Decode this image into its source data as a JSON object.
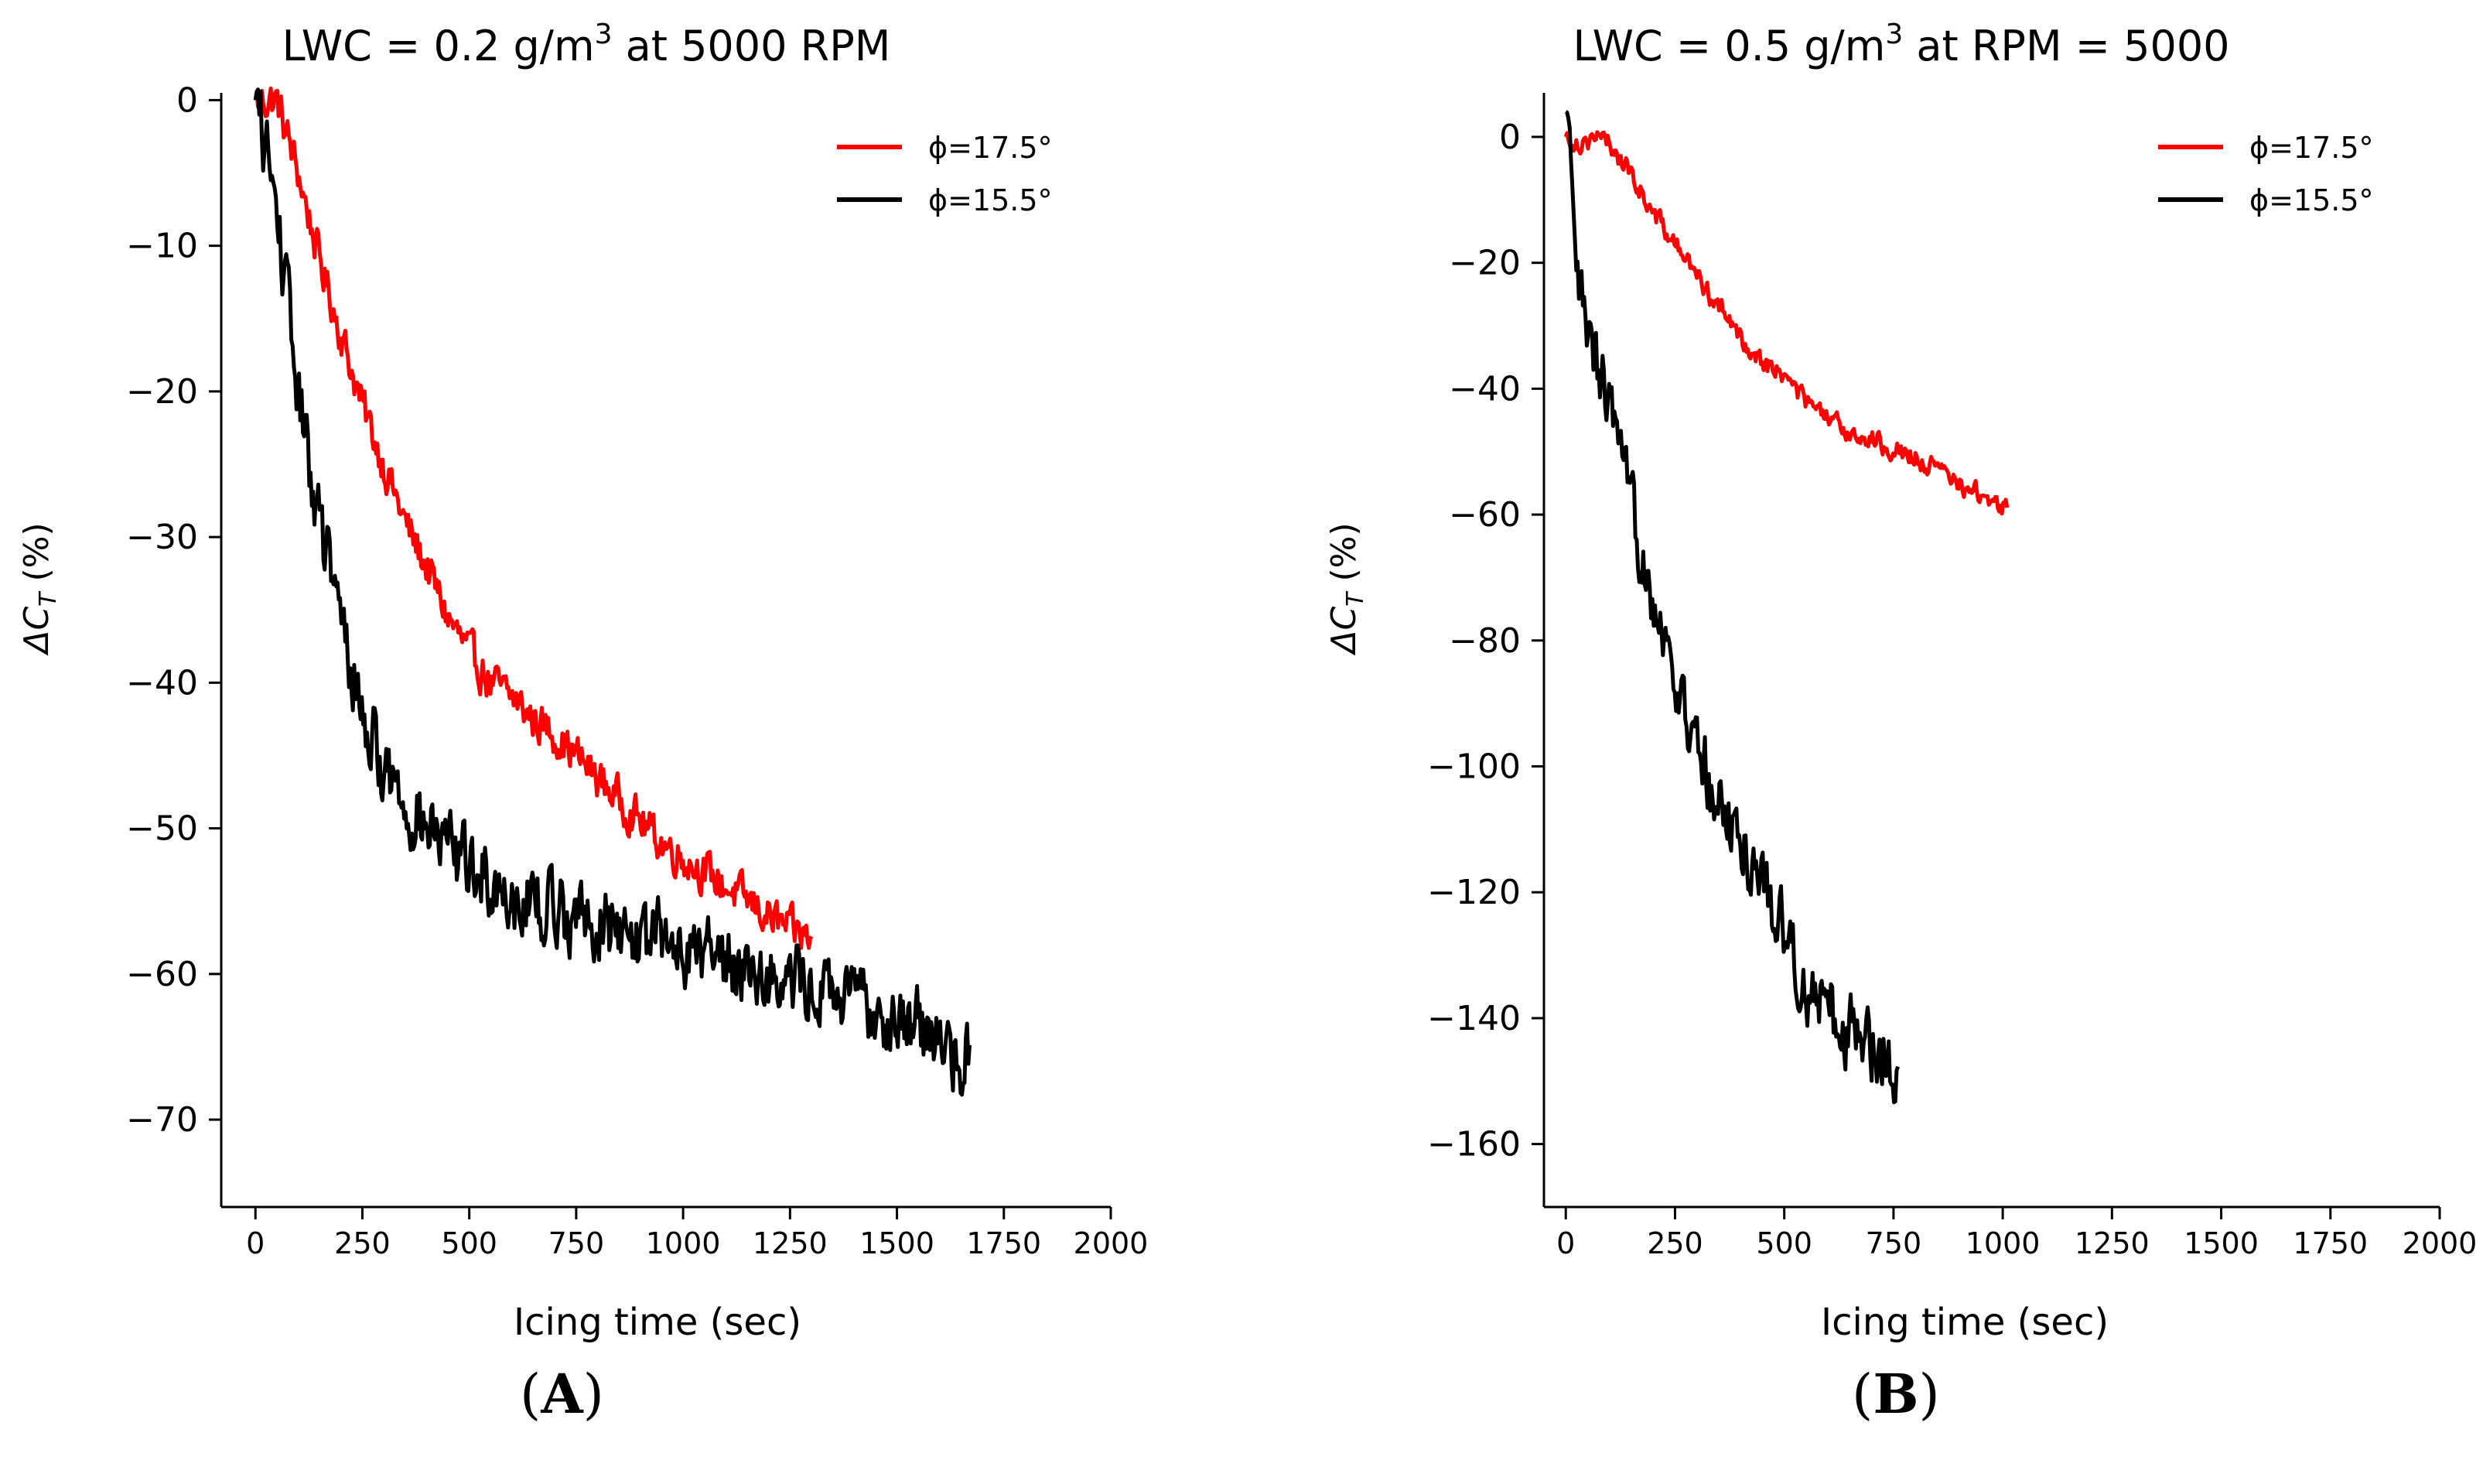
{
  "chart_data": [
    {
      "type": "line",
      "panel": "(A)",
      "panel_letter": "A",
      "title": "LWC = 0.2 g/m³ at 5000 RPM",
      "title_parts": {
        "pre": "LWC = 0.2 g/m",
        "sup": "3",
        "post": " at 5000 RPM"
      },
      "xlabel": "Icing time (sec)",
      "ylabel": "ΔC_T (%)",
      "ylabel_parts": {
        "pre": "ΔC",
        "sub": "T",
        "post": " (%)"
      },
      "xlim": [
        -80,
        2000
      ],
      "ylim": [
        -76,
        0.5
      ],
      "xticks": [
        0,
        250,
        500,
        750,
        1000,
        1250,
        1500,
        1750,
        2000
      ],
      "yticks": [
        0,
        -10,
        -20,
        -30,
        -40,
        -50,
        -60,
        -70
      ],
      "ytick_labels": [
        "0",
        "−10",
        "−20",
        "−30",
        "−40",
        "−50",
        "−60",
        "−70"
      ],
      "legend_position": "top-right",
      "series": [
        {
          "name": "ϕ=17.5°",
          "color": "#ff0000",
          "x_end": 1300,
          "points": [
            [
              0,
              0
            ],
            [
              50,
              0
            ],
            [
              100,
              -5
            ],
            [
              150,
              -11
            ],
            [
              200,
              -16
            ],
            [
              250,
              -21
            ],
            [
              300,
              -25
            ],
            [
              350,
              -29
            ],
            [
              400,
              -32
            ],
            [
              450,
              -35.5
            ],
            [
              500,
              -38
            ],
            [
              550,
              -40
            ],
            [
              600,
              -41
            ],
            [
              650,
              -42.5
            ],
            [
              700,
              -43.5
            ],
            [
              750,
              -45
            ],
            [
              800,
              -46.5
            ],
            [
              850,
              -48
            ],
            [
              900,
              -49.5
            ],
            [
              950,
              -51
            ],
            [
              1000,
              -52
            ],
            [
              1050,
              -53
            ],
            [
              1100,
              -54
            ],
            [
              1150,
              -55
            ],
            [
              1200,
              -56
            ],
            [
              1250,
              -57
            ],
            [
              1300,
              -57.5
            ]
          ],
          "noise": 1.2
        },
        {
          "name": "ϕ=15.5°",
          "color": "#000000",
          "x_end": 1670,
          "points": [
            [
              0,
              0
            ],
            [
              30,
              -4
            ],
            [
              60,
              -10
            ],
            [
              90,
              -18
            ],
            [
              120,
              -24
            ],
            [
              150,
              -29
            ],
            [
              200,
              -36
            ],
            [
              250,
              -42
            ],
            [
              300,
              -46
            ],
            [
              350,
              -48
            ],
            [
              400,
              -50
            ],
            [
              450,
              -51.5
            ],
            [
              500,
              -52.5
            ],
            [
              550,
              -53.5
            ],
            [
              600,
              -54.5
            ],
            [
              650,
              -55
            ],
            [
              700,
              -55.5
            ],
            [
              800,
              -56.5
            ],
            [
              900,
              -57.5
            ],
            [
              1000,
              -58
            ],
            [
              1100,
              -59
            ],
            [
              1200,
              -60
            ],
            [
              1300,
              -61
            ],
            [
              1400,
              -62
            ],
            [
              1500,
              -63
            ],
            [
              1600,
              -64.5
            ],
            [
              1670,
              -66
            ]
          ],
          "noise": 2.2
        }
      ]
    },
    {
      "type": "line",
      "panel": "(B)",
      "panel_letter": "B",
      "title": "LWC = 0.5 g/m³ at RPM = 5000",
      "title_parts": {
        "pre": "LWC = 0.5 g/m",
        "sup": "3",
        "post": " at RPM = 5000"
      },
      "xlabel": "Icing time (sec)",
      "ylabel": "ΔC_T (%)",
      "ylabel_parts": {
        "pre": "ΔC",
        "sub": "T",
        "post": " (%)"
      },
      "xlim": [
        -50,
        2000
      ],
      "ylim": [
        -170,
        7
      ],
      "xticks": [
        0,
        250,
        500,
        750,
        1000,
        1250,
        1500,
        1750,
        2000
      ],
      "yticks": [
        0,
        -20,
        -40,
        -60,
        -80,
        -100,
        -120,
        -140,
        -160
      ],
      "ytick_labels": [
        "0",
        "−20",
        "−40",
        "−60",
        "−80",
        "−100",
        "−120",
        "−140",
        "−160"
      ],
      "legend_position": "top-right",
      "series": [
        {
          "name": "ϕ=17.5°",
          "color": "#ff0000",
          "x_end": 1010,
          "points": [
            [
              0,
              0
            ],
            [
              30,
              -1
            ],
            [
              60,
              0
            ],
            [
              100,
              -1
            ],
            [
              150,
              -6
            ],
            [
              200,
              -12
            ],
            [
              250,
              -17
            ],
            [
              300,
              -22
            ],
            [
              350,
              -27
            ],
            [
              400,
              -32
            ],
            [
              450,
              -35.5
            ],
            [
              500,
              -38
            ],
            [
              550,
              -42
            ],
            [
              600,
              -45
            ],
            [
              650,
              -47
            ],
            [
              700,
              -48
            ],
            [
              750,
              -49.5
            ],
            [
              800,
              -51
            ],
            [
              850,
              -53
            ],
            [
              900,
              -55
            ],
            [
              950,
              -57
            ],
            [
              1010,
              -59
            ]
          ],
          "noise": 1.4
        },
        {
          "name": "ϕ=15.5°",
          "color": "#000000",
          "x_end": 760,
          "points": [
            [
              0,
              4
            ],
            [
              10,
              -5
            ],
            [
              20,
              -20
            ],
            [
              40,
              -28
            ],
            [
              60,
              -35
            ],
            [
              100,
              -42
            ],
            [
              130,
              -55
            ],
            [
              160,
              -62
            ],
            [
              200,
              -72
            ],
            [
              250,
              -86
            ],
            [
              300,
              -98
            ],
            [
              350,
              -106
            ],
            [
              400,
              -112
            ],
            [
              450,
              -118
            ],
            [
              500,
              -126
            ],
            [
              550,
              -135
            ],
            [
              600,
              -139
            ],
            [
              650,
              -142
            ],
            [
              700,
              -144
            ],
            [
              760,
              -147
            ]
          ],
          "noise": 5
        }
      ]
    }
  ]
}
